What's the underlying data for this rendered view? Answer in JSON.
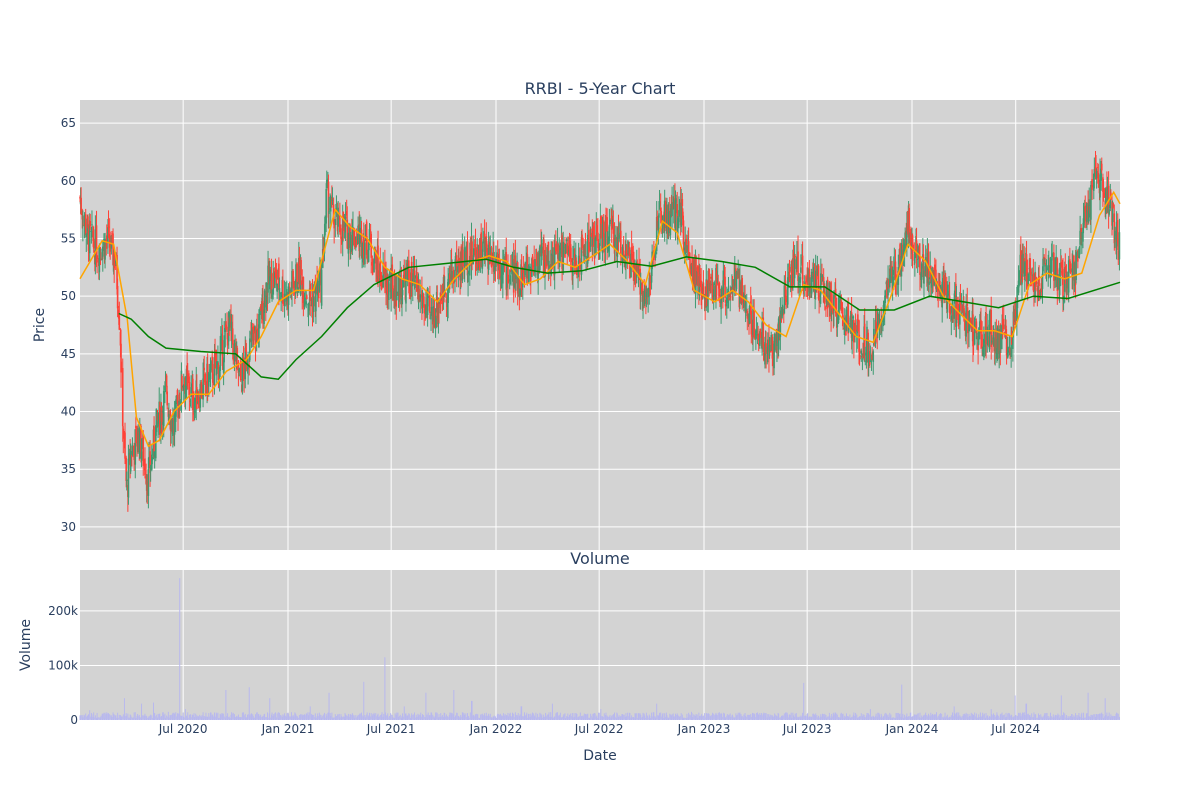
{
  "chart_data": [
    {
      "type": "candlestick",
      "title": "RRBI - 5-Year Chart",
      "ylabel": "Price",
      "xlabel": "",
      "ylim": [
        28,
        67
      ],
      "yticks": [
        30,
        35,
        40,
        45,
        50,
        55,
        60,
        65
      ],
      "xlim": [
        "2020-01-02",
        "2024-12-31"
      ],
      "xticks": [
        "2020-07-01",
        "2021-01-01",
        "2021-07-01",
        "2022-01-01",
        "2022-07-01",
        "2023-01-01",
        "2023-07-01",
        "2024-01-01",
        "2024-07-01"
      ],
      "grid": true,
      "legend": "none",
      "colors": {
        "up": "#3d9970",
        "down": "#ff4136",
        "ma_short": "#ffa500",
        "ma_long": "#008000",
        "plot_bg": "#d3d3d3"
      },
      "close_series": [
        [
          "2020-01-02",
          58.5
        ],
        [
          "2020-01-15",
          55.5
        ],
        [
          "2020-02-01",
          54.0
        ],
        [
          "2020-02-20",
          54.8
        ],
        [
          "2020-03-05",
          53.0
        ],
        [
          "2020-03-12",
          48.0
        ],
        [
          "2020-03-18",
          39.0
        ],
        [
          "2020-03-24",
          33.0
        ],
        [
          "2020-04-01",
          36.5
        ],
        [
          "2020-04-15",
          38.0
        ],
        [
          "2020-05-01",
          34.0
        ],
        [
          "2020-05-15",
          38.5
        ],
        [
          "2020-06-01",
          41.5
        ],
        [
          "2020-06-15",
          38.5
        ],
        [
          "2020-07-01",
          43.0
        ],
        [
          "2020-07-20",
          41.0
        ],
        [
          "2020-08-10",
          42.5
        ],
        [
          "2020-09-01",
          44.0
        ],
        [
          "2020-09-20",
          47.5
        ],
        [
          "2020-10-10",
          42.5
        ],
        [
          "2020-10-25",
          45.5
        ],
        [
          "2020-11-10",
          47.0
        ],
        [
          "2020-11-25",
          51.0
        ],
        [
          "2020-12-10",
          51.5
        ],
        [
          "2021-01-01",
          50.0
        ],
        [
          "2021-01-20",
          52.0
        ],
        [
          "2021-02-10",
          49.5
        ],
        [
          "2021-03-01",
          51.0
        ],
        [
          "2021-03-10",
          59.0
        ],
        [
          "2021-03-20",
          57.0
        ],
        [
          "2021-04-01",
          56.0
        ],
        [
          "2021-04-20",
          55.5
        ],
        [
          "2021-05-10",
          55.0
        ],
        [
          "2021-05-25",
          54.5
        ],
        [
          "2021-06-10",
          52.0
        ],
        [
          "2021-06-25",
          51.0
        ],
        [
          "2021-07-10",
          50.5
        ],
        [
          "2021-08-01",
          51.5
        ],
        [
          "2021-08-20",
          50.0
        ],
        [
          "2021-09-10",
          48.0
        ],
        [
          "2021-10-01",
          50.5
        ],
        [
          "2021-10-25",
          52.5
        ],
        [
          "2021-11-15",
          53.5
        ],
        [
          "2021-12-10",
          54.0
        ],
        [
          "2022-01-01",
          53.5
        ],
        [
          "2022-01-20",
          52.0
        ],
        [
          "2022-02-10",
          51.5
        ],
        [
          "2022-03-01",
          52.5
        ],
        [
          "2022-03-20",
          53.5
        ],
        [
          "2022-04-10",
          53.0
        ],
        [
          "2022-05-01",
          54.0
        ],
        [
          "2022-05-20",
          52.5
        ],
        [
          "2022-06-10",
          54.5
        ],
        [
          "2022-07-01",
          55.0
        ],
        [
          "2022-07-20",
          55.5
        ],
        [
          "2022-08-10",
          54.5
        ],
        [
          "2022-09-01",
          52.0
        ],
        [
          "2022-09-25",
          50.0
        ],
        [
          "2022-10-15",
          57.0
        ],
        [
          "2022-11-01",
          56.5
        ],
        [
          "2022-11-20",
          57.5
        ],
        [
          "2022-12-10",
          53.0
        ],
        [
          "2022-12-28",
          50.0
        ],
        [
          "2023-01-20",
          51.0
        ],
        [
          "2023-02-10",
          50.5
        ],
        [
          "2023-03-01",
          51.0
        ],
        [
          "2023-03-20",
          48.5
        ],
        [
          "2023-04-10",
          46.5
        ],
        [
          "2023-05-01",
          45.0
        ],
        [
          "2023-05-20",
          49.0
        ],
        [
          "2023-06-10",
          53.0
        ],
        [
          "2023-06-25",
          51.5
        ],
        [
          "2023-07-15",
          51.0
        ],
        [
          "2023-08-05",
          50.0
        ],
        [
          "2023-08-25",
          48.5
        ],
        [
          "2023-09-15",
          47.5
        ],
        [
          "2023-10-05",
          46.0
        ],
        [
          "2023-10-25",
          45.5
        ],
        [
          "2023-11-15",
          50.0
        ],
        [
          "2023-12-05",
          52.0
        ],
        [
          "2023-12-25",
          56.5
        ],
        [
          "2024-01-15",
          53.0
        ],
        [
          "2024-02-05",
          52.0
        ],
        [
          "2024-02-25",
          50.5
        ],
        [
          "2024-03-15",
          49.0
        ],
        [
          "2024-04-05",
          48.0
        ],
        [
          "2024-04-25",
          46.5
        ],
        [
          "2024-05-15",
          47.0
        ],
        [
          "2024-06-05",
          46.0
        ],
        [
          "2024-06-25",
          46.5
        ],
        [
          "2024-07-10",
          53.0
        ],
        [
          "2024-07-25",
          52.0
        ],
        [
          "2024-08-15",
          51.5
        ],
        [
          "2024-09-05",
          52.5
        ],
        [
          "2024-09-25",
          51.0
        ],
        [
          "2024-10-15",
          52.5
        ],
        [
          "2024-11-05",
          58.0
        ],
        [
          "2024-11-25",
          60.5
        ],
        [
          "2024-12-10",
          58.5
        ],
        [
          "2024-12-31",
          54.0
        ]
      ],
      "ma_short": [
        [
          "2020-01-02",
          51.5
        ],
        [
          "2020-02-10",
          54.8
        ],
        [
          "2020-03-01",
          54.5
        ],
        [
          "2020-03-25",
          48.0
        ],
        [
          "2020-04-10",
          39.5
        ],
        [
          "2020-05-01",
          37.0
        ],
        [
          "2020-05-20",
          37.5
        ],
        [
          "2020-06-15",
          40.0
        ],
        [
          "2020-07-15",
          41.5
        ],
        [
          "2020-08-15",
          41.5
        ],
        [
          "2020-09-15",
          43.5
        ],
        [
          "2020-10-20",
          44.5
        ],
        [
          "2020-11-15",
          46.5
        ],
        [
          "2020-12-15",
          49.5
        ],
        [
          "2021-01-15",
          50.5
        ],
        [
          "2021-02-15",
          50.5
        ],
        [
          "2021-03-25",
          57.5
        ],
        [
          "2021-04-20",
          56.0
        ],
        [
          "2021-05-20",
          55.0
        ],
        [
          "2021-06-20",
          52.5
        ],
        [
          "2021-07-20",
          51.5
        ],
        [
          "2021-08-20",
          51.0
        ],
        [
          "2021-09-20",
          49.5
        ],
        [
          "2021-10-20",
          51.5
        ],
        [
          "2021-11-20",
          53.0
        ],
        [
          "2021-12-20",
          53.5
        ],
        [
          "2022-01-20",
          53.0
        ],
        [
          "2022-02-20",
          51.0
        ],
        [
          "2022-03-20",
          51.5
        ],
        [
          "2022-04-20",
          53.0
        ],
        [
          "2022-05-20",
          52.5
        ],
        [
          "2022-06-20",
          53.5
        ],
        [
          "2022-07-20",
          54.5
        ],
        [
          "2022-08-20",
          53.0
        ],
        [
          "2022-09-20",
          51.0
        ],
        [
          "2022-10-20",
          56.5
        ],
        [
          "2022-11-15",
          55.5
        ],
        [
          "2022-12-15",
          50.5
        ],
        [
          "2023-01-20",
          49.5
        ],
        [
          "2023-02-20",
          50.5
        ],
        [
          "2023-03-20",
          49.5
        ],
        [
          "2023-04-20",
          47.5
        ],
        [
          "2023-05-25",
          46.5
        ],
        [
          "2023-06-25",
          51.0
        ],
        [
          "2023-07-25",
          50.5
        ],
        [
          "2023-08-25",
          48.5
        ],
        [
          "2023-09-25",
          46.5
        ],
        [
          "2023-10-25",
          46.0
        ],
        [
          "2023-11-25",
          50.0
        ],
        [
          "2023-12-25",
          54.5
        ],
        [
          "2024-01-25",
          53.0
        ],
        [
          "2024-02-25",
          50.0
        ],
        [
          "2024-03-25",
          48.5
        ],
        [
          "2024-04-25",
          47.0
        ],
        [
          "2024-05-25",
          47.0
        ],
        [
          "2024-06-25",
          46.5
        ],
        [
          "2024-07-25",
          51.0
        ],
        [
          "2024-08-25",
          52.0
        ],
        [
          "2024-09-25",
          51.5
        ],
        [
          "2024-10-25",
          52.0
        ],
        [
          "2024-11-25",
          57.0
        ],
        [
          "2024-12-20",
          59.0
        ],
        [
          "2024-12-31",
          58.0
        ]
      ],
      "ma_long": [
        [
          "2020-03-10",
          48.5
        ],
        [
          "2020-04-01",
          48.0
        ],
        [
          "2020-05-01",
          46.5
        ],
        [
          "2020-06-01",
          45.5
        ],
        [
          "2020-08-01",
          45.2
        ],
        [
          "2020-10-01",
          45.0
        ],
        [
          "2020-11-15",
          43.0
        ],
        [
          "2020-12-15",
          42.8
        ],
        [
          "2021-01-15",
          44.5
        ],
        [
          "2021-03-01",
          46.5
        ],
        [
          "2021-04-15",
          49.0
        ],
        [
          "2021-06-01",
          51.0
        ],
        [
          "2021-08-01",
          52.5
        ],
        [
          "2021-10-01",
          52.8
        ],
        [
          "2021-12-15",
          53.2
        ],
        [
          "2022-02-01",
          52.5
        ],
        [
          "2022-04-01",
          52.0
        ],
        [
          "2022-06-01",
          52.2
        ],
        [
          "2022-08-01",
          53.0
        ],
        [
          "2022-10-01",
          52.6
        ],
        [
          "2022-12-01",
          53.4
        ],
        [
          "2023-02-01",
          53.0
        ],
        [
          "2023-04-01",
          52.5
        ],
        [
          "2023-06-01",
          50.8
        ],
        [
          "2023-08-01",
          50.8
        ],
        [
          "2023-10-01",
          48.8
        ],
        [
          "2023-12-01",
          48.8
        ],
        [
          "2024-02-01",
          50.0
        ],
        [
          "2024-04-01",
          49.5
        ],
        [
          "2024-06-01",
          49.0
        ],
        [
          "2024-08-01",
          50.0
        ],
        [
          "2024-10-01",
          49.8
        ],
        [
          "2024-12-31",
          51.2
        ]
      ]
    },
    {
      "type": "bar",
      "title": "Volume",
      "xlabel": "Date",
      "ylabel": "Volume",
      "ylim": [
        0,
        275000
      ],
      "yticks": [
        0,
        100000,
        200000
      ],
      "ytick_labels": [
        "0",
        "100k",
        "200k"
      ],
      "xtick_labels": [
        "Jul 2020",
        "Jan 2021",
        "Jul 2021",
        "Jan 2022",
        "Jul 2022",
        "Jan 2023",
        "Jul 2023",
        "Jan 2024",
        "Jul 2024"
      ],
      "grid": true,
      "bar_color": "#b8b8ee",
      "baseline": 9000,
      "spikes": [
        [
          "2020-01-20",
          18000
        ],
        [
          "2020-03-20",
          40000
        ],
        [
          "2020-04-20",
          30000
        ],
        [
          "2020-05-10",
          32000
        ],
        [
          "2020-06-05",
          15000
        ],
        [
          "2020-06-25",
          260000
        ],
        [
          "2020-07-05",
          20000
        ],
        [
          "2020-09-15",
          55000
        ],
        [
          "2020-10-25",
          60000
        ],
        [
          "2020-12-01",
          40000
        ],
        [
          "2021-02-10",
          25000
        ],
        [
          "2021-03-15",
          50000
        ],
        [
          "2021-05-15",
          70000
        ],
        [
          "2021-06-20",
          115000
        ],
        [
          "2021-07-25",
          25000
        ],
        [
          "2021-09-01",
          50000
        ],
        [
          "2021-10-20",
          55000
        ],
        [
          "2021-11-20",
          35000
        ],
        [
          "2022-02-15",
          25000
        ],
        [
          "2022-04-10",
          30000
        ],
        [
          "2022-07-05",
          20000
        ],
        [
          "2022-10-10",
          30000
        ],
        [
          "2022-12-10",
          15000
        ],
        [
          "2023-06-25",
          68000
        ],
        [
          "2023-10-20",
          20000
        ],
        [
          "2023-12-15",
          65000
        ],
        [
          "2024-03-15",
          25000
        ],
        [
          "2024-05-20",
          20000
        ],
        [
          "2024-07-01",
          45000
        ],
        [
          "2024-07-20",
          30000
        ],
        [
          "2024-09-20",
          45000
        ],
        [
          "2024-11-05",
          50000
        ],
        [
          "2024-12-05",
          40000
        ]
      ]
    }
  ]
}
